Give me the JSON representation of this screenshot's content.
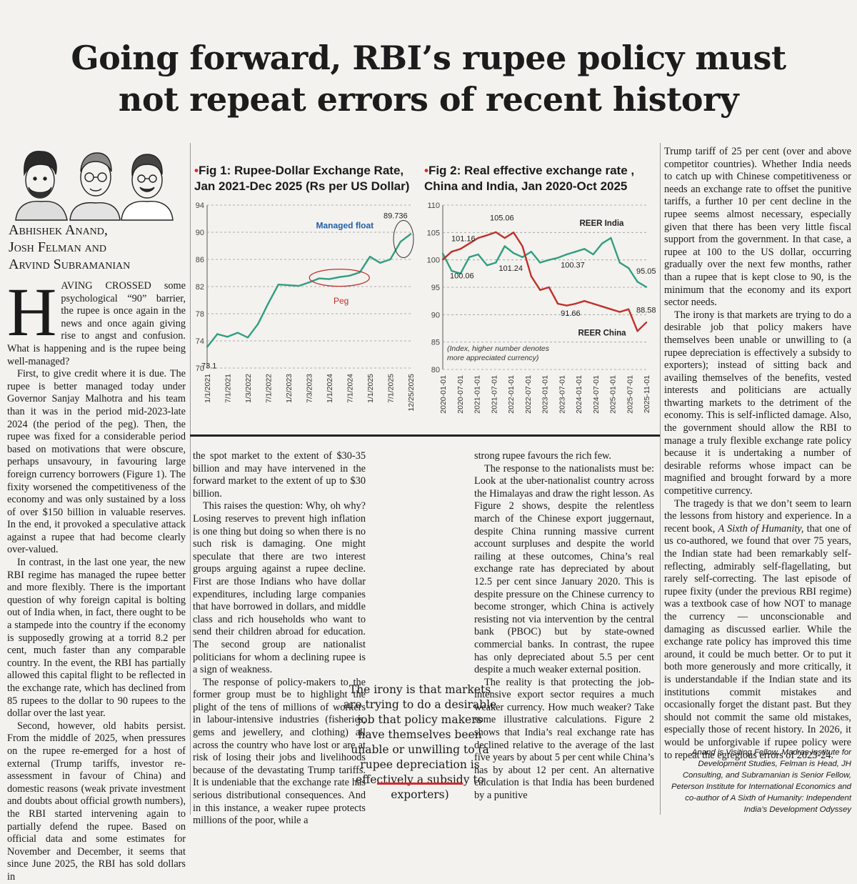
{
  "headline": [
    "Going forward, RBI’s rupee policy must",
    "not repeat errors of recent history"
  ],
  "authors": [
    "Abhishek Anand,",
    "Josh Felman and",
    "Arvind Subramanian"
  ],
  "col1": {
    "dropcap": "H",
    "p1": "AVING CROSSED some psychological “90” barrier, the rupee is once again in the news and once again giving rise to angst and confusion. What is happening and is the rupee being well-managed?",
    "p2": "First, to give credit where it is due. The rupee is better managed today under Governor Sanjay Malhotra and his team than it was in the period mid-2023-late 2024 (the period of the peg). Then, the rupee was fixed for a considerable period based on motivations that were obscure, perhaps unsavoury, in favouring large foreign currency borrowers (Figure 1). The fixity worsened the competitiveness of the economy and was only sustained by a loss of over $150 billion in valuable reserves. In the end, it provoked a speculative attack against a rupee that had become clearly over-valued.",
    "p3": "In contrast, in the last one year, the new RBI regime has managed the rupee better and more flexibly. There is the important question of why foreign capital is bolting out of India when, in fact, there ought to be a stampede into the country if the economy is supposedly growing at a torrid 8.2 per cent, much faster than any comparable country. In the event, the RBI has partially allowed this capital flight to be reflected in the exchange rate, which has declined from 85 rupees to the dollar to 90 rupees to the dollar over the last year.",
    "p4": "Second, however, old habits persist. From the middle of 2025, when pressures on the rupee re-emerged for a host of external (Trump tariffs, investor re-assessment in favour of China) and domestic reasons (weak private investment and doubts about official growth numbers), the RBI started intervening again to partially defend the rupee. Based on official data and some estimates for November and December, it seems that since June 2025, the RBI has sold dollars in"
  },
  "col2": {
    "p1": "the spot market to the extent of $30-35 billion and may have intervened in the forward market to the extent of up to $30 billion.",
    "p2": "This raises the question: Why, oh why? Losing reserves to prevent high inflation is one thing but doing so when there is no such risk is damaging. One might speculate that there are two interest groups arguing against a rupee decline. First are those Indians who have dollar expenditures, including large companies that have borrowed in dollars, and middle class and rich households who want to send their children abroad for education. The second group are nationalist politicians for whom a declining rupee is a sign of weakness.",
    "p3": "The response of policy-makers to the former group must be to highlight the plight of the tens of millions of workers in labour-intensive industries (fisheries, gems and jewellery, and clothing) all across the country who have lost or are at risk of losing their jobs and livelihoods because of the devastating Trump tariffs. It is undeniable that the exchange rate has serious distributional consequences. And in this instance, a weaker rupee protects millions of the poor, while a"
  },
  "col3": {
    "p1": "strong rupee favours the rich few.",
    "p2": "The response to the nationalists must be: Look at the uber-nationalist country across the Himalayas and draw the right lesson. As Figure 2 shows, despite the relentless march of the Chinese export juggernaut, despite China running massive current account surpluses and despite the world railing at these outcomes, China’s real exchange rate has depreciated by about 12.5 per cent since January 2020. This is despite pressure on the Chinese currency to become stronger, which China is actively resisting not via intervention by the central bank (PBOC) but by state-owned commercial banks. In contrast, the rupee has only depreciated about 5.5 per cent despite a much weaker external position.",
    "p3": "The reality is that protecting the job-intensive export sector requires a much weaker currency. How much weaker? Take some illustrative calculations. Figure 2 shows that India’s real exchange rate has declined relative to the average of the last five years by about 5 per cent while China’s has by about 12 per cent. An alternative calculation is that India has been burdened by a punitive"
  },
  "col4": {
    "p1": "Trump tariff of 25 per cent (over and above competitor countries). Whether India needs to catch up with Chinese competitiveness or needs an exchange rate to offset the punitive tariffs, a further 10 per cent decline in the rupee seems almost necessary, especially given that there has been very little fiscal support from the government. In that case, a rupee at 100 to the US dollar, occurring gradually over the next few months, rather than a rupee that is kept close to 90, is the minimum that the economy and its export sector needs.",
    "p2": "The irony is that markets are trying to do a desirable job that policy makers have themselves been unable or unwilling to (a rupee depreciation is effectively a subsidy to exporters); instead of sitting back and availing themselves of the benefits, vested interests and politicians are actually thwarting markets to the detriment of the economy. This is self-inflicted damage. Also, the government should allow the RBI to manage a truly flexible exchange rate policy because it is undertaking a number of desirable reforms whose impact can be magnified and brought forward by a more competitive currency.",
    "p3a": "The tragedy is that we don’t seem to learn the lessons from history and experience. In a recent book, ",
    "p3book": "A Sixth of Humanity,",
    "p3b": " that one of us co-authored, we found that over 75 years, the Indian state had been remarkably self-reflecting, admirably self-flagellating, but rarely self-correcting. The last episode of rupee fixity (under the previous RBI regime) was a textbook case of how NOT to manage the currency — unconscionable and damaging as discussed earlier. While the exchange rate policy has improved this time around, it could be much better. Or to put it both more generously and more critically, it is understandable if the Indian state and its institutions commit mistakes and occasionally forget the distant past. But they should not commit the same old mistakes, especially those of recent history. In 2026, it would be unforgivable if rupee policy were to repeat the egregious errors of 2023-24."
  },
  "pullquote": "The irony is that markets are trying to do a desirable job that policy makers have themselves been unable or unwilling to (a rupee depreciation is effectively a subsidy to exporters)",
  "credit": "Anand is Visiting Fellow, Madras Institute for Development Studies, Felman is Head, JH Consulting, and Subramanian is Senior Fellow, Peterson Institute for International Economics and co-author of A Sixth of Humanity: Independent India’s Development Odyssey",
  "colors": {
    "accent": "#d8262b",
    "india_line": "#2f9e83",
    "china_line": "#c0302a",
    "annot_blue": "#1f5fa8"
  },
  "chart_data": [
    {
      "type": "line",
      "title_bullet": "•",
      "title": [
        "Fig 1: Rupee-Dollar Exchange Rate,",
        "Jan 2021-Dec 2025 (Rs per US Dollar)"
      ],
      "ylim": [
        70,
        94
      ],
      "yticks": [
        "94",
        "90",
        "86",
        "82",
        "78",
        "74",
        "70"
      ],
      "xticks": [
        "1/1/2021",
        "7/1/2021",
        "1/3/2022",
        "7/1/2022",
        "1/2/2023",
        "7/3/2023",
        "1/1/2024",
        "7/1/2024",
        "1/1/2025",
        "7/1/2025",
        "12/25/2025"
      ],
      "x": [
        "2021-01",
        "2021-04",
        "2021-07",
        "2021-10",
        "2022-01",
        "2022-04",
        "2022-07",
        "2022-10",
        "2023-01",
        "2023-04",
        "2023-07",
        "2023-10",
        "2024-01",
        "2024-04",
        "2024-07",
        "2024-10",
        "2025-01",
        "2025-04",
        "2025-07",
        "2025-10",
        "2025-12"
      ],
      "series": [
        {
          "values": [
            73.1,
            75.0,
            74.6,
            75.2,
            74.5,
            76.5,
            79.5,
            82.3,
            82.2,
            82.1,
            82.6,
            83.2,
            83.1,
            83.4,
            83.6,
            84.1,
            86.4,
            85.5,
            86.0,
            88.6,
            89.736
          ]
        }
      ],
      "labels": {
        "start": "73.1",
        "end": "89.736",
        "managed": "Managed float",
        "peg": "Peg"
      }
    },
    {
      "type": "line",
      "title_bullet": "•",
      "title": [
        "Fig 2: Real effective exchange rate ,",
        "China and India, Jan 2020-Oct 2025"
      ],
      "ylim": [
        80,
        110
      ],
      "yticks": [
        "110",
        "105",
        "100",
        "95",
        "90",
        "85",
        "80"
      ],
      "xticks": [
        "2020-01-01",
        "2020-07-01",
        "2021-01-01",
        "2021-07-01",
        "2022-01-01",
        "2022-07-01",
        "2023-01-01",
        "2023-07-01",
        "2024-01-01",
        "2024-07-01",
        "2025-01-01",
        "2025-07-01",
        "2025-11-01"
      ],
      "x": [
        "2020-01",
        "2020-04",
        "2020-07",
        "2020-10",
        "2021-01",
        "2021-04",
        "2021-07",
        "2021-10",
        "2022-01",
        "2022-04",
        "2022-07",
        "2022-10",
        "2023-01",
        "2023-04",
        "2023-07",
        "2023-10",
        "2024-01",
        "2024-04",
        "2024-07",
        "2024-10",
        "2025-01",
        "2025-04",
        "2025-07",
        "2025-10"
      ],
      "series": [
        {
          "name": "REER India",
          "values": [
            101.16,
            98.0,
            97.5,
            100.5,
            101.0,
            99.0,
            99.5,
            102.5,
            101.24,
            100.5,
            101.5,
            99.5,
            100.0,
            100.37,
            101.0,
            101.5,
            102.0,
            101.0,
            103.0,
            104.0,
            99.5,
            98.5,
            96.0,
            95.05
          ]
        },
        {
          "name": "REER China",
          "values": [
            100.06,
            101.5,
            102.0,
            103.0,
            104.0,
            104.5,
            105.06,
            104.0,
            105.0,
            102.5,
            97.0,
            94.5,
            95.0,
            92.0,
            91.66,
            92.0,
            92.5,
            92.0,
            91.5,
            91.0,
            90.5,
            91.0,
            87.0,
            88.58
          ]
        }
      ],
      "labels": {
        "india_start": "101.16",
        "china_start": "100.06",
        "china_peak": "105.06",
        "india_mid": "101.24",
        "india_mid2": "100.37",
        "china_low": "91.66",
        "india_end": "95.05",
        "china_end": "88.58"
      },
      "note": [
        "(Index, higher number denotes",
        "more appreciated currency)"
      ]
    }
  ]
}
